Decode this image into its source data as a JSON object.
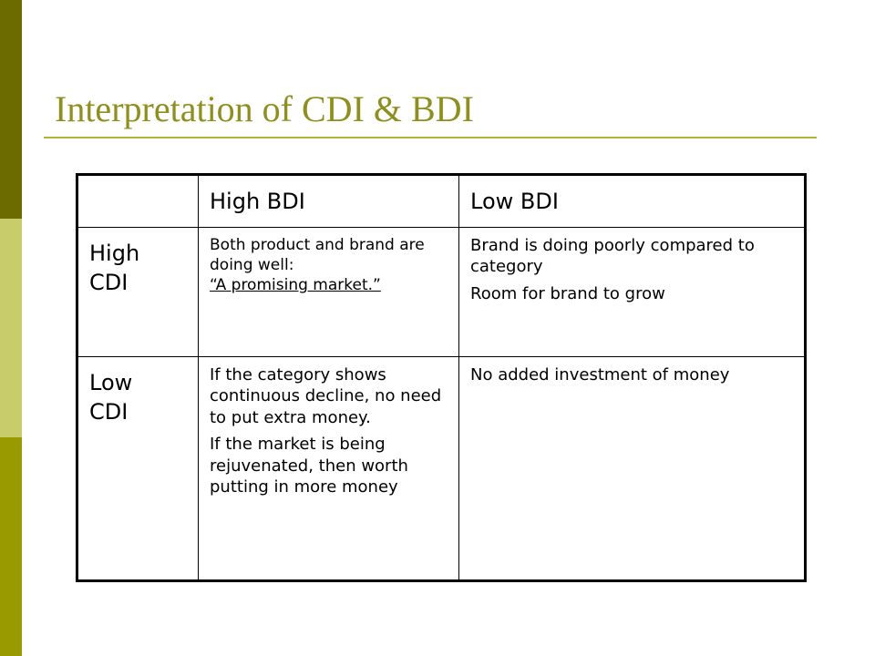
{
  "slide": {
    "title": "Interpretation of CDI & BDI"
  },
  "table": {
    "corner": "",
    "columns": [
      "High BDI",
      "Low BDI"
    ],
    "rows": [
      {
        "label_line1": "High",
        "label_line2": "CDI",
        "high_bdi": {
          "line1": "Both product and brand are doing well:",
          "line2": "“A promising market.”"
        },
        "low_bdi": {
          "p1": "Brand is doing poorly compared to category",
          "p2": "Room for brand to grow"
        }
      },
      {
        "label_line1": "Low",
        "label_line2": "CDI",
        "high_bdi": {
          "p1": "If the category shows continuous decline, no need to put extra money.",
          "p2": "If the market is being rejuvenated, then worth putting in more money"
        },
        "low_bdi": {
          "p1": "No added investment of money"
        }
      }
    ]
  },
  "colors": {
    "title": "#8f8f1f",
    "rule": "#b3b33b",
    "sidebar_top": "#6b6b00",
    "sidebar_mid": "#c8cc6a",
    "sidebar_bottom": "#999900"
  }
}
